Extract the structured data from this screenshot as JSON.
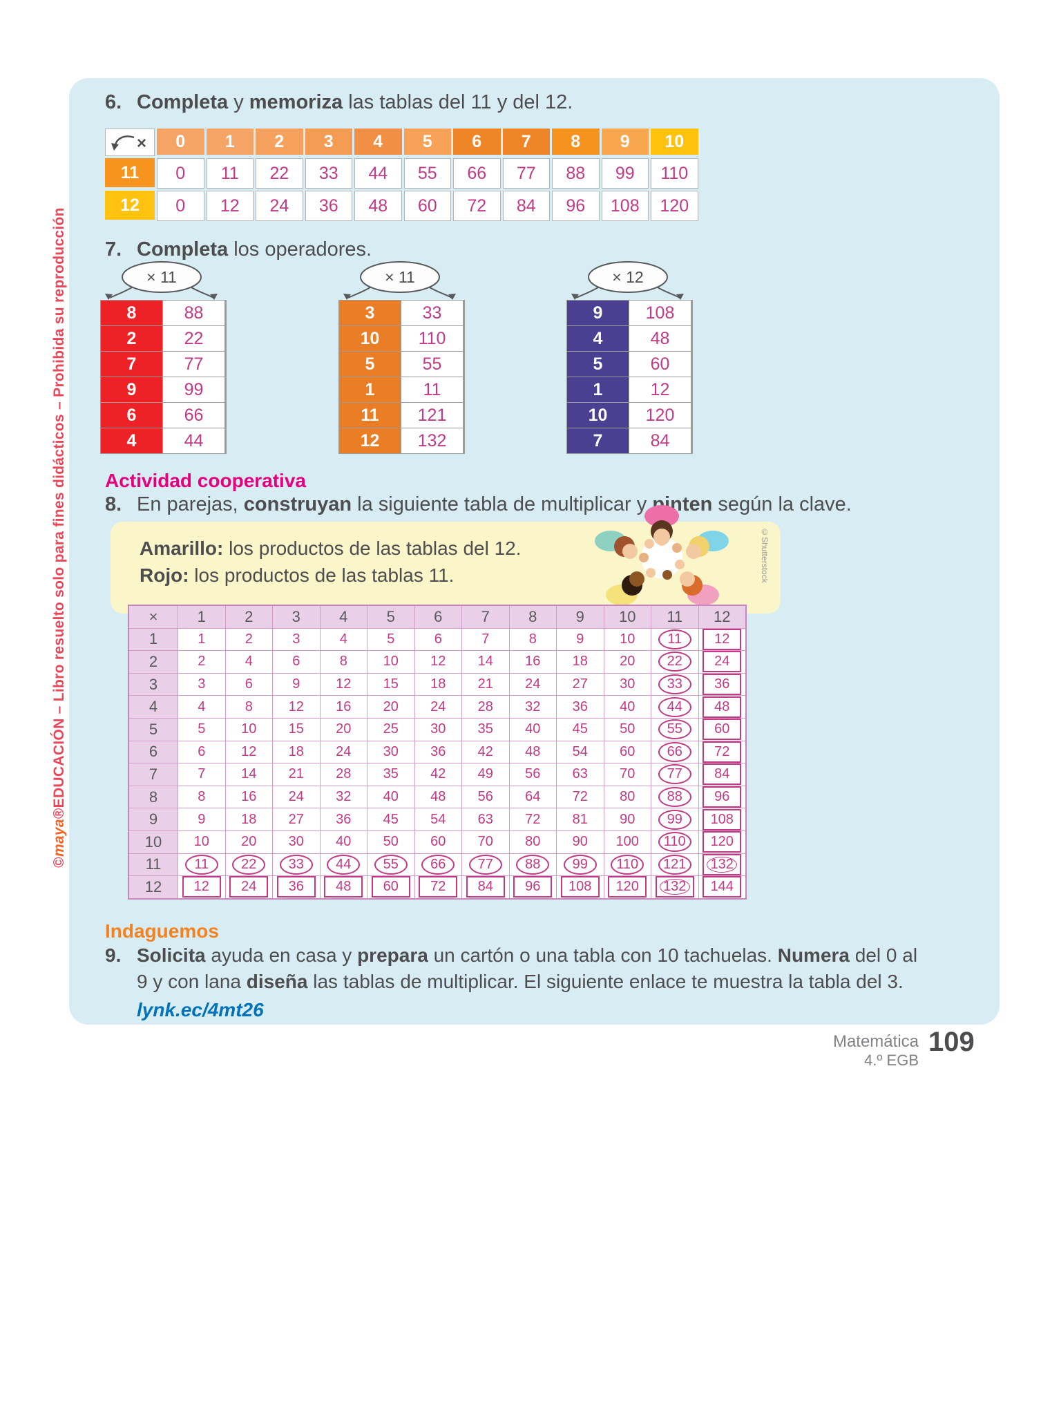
{
  "colors": {
    "panel_blue": "#D8EDF3",
    "value_magenta": "#C13A85",
    "accent_pink": "#E6007E",
    "accent_orange": "#F58220",
    "link_blue": "#0072BC",
    "key_yellow": "#FBF6C9",
    "table_header_purple": "#E9CFE7"
  },
  "page": {
    "sidebar_segments": [
      {
        "t": "©",
        "c": "#E8475A",
        "b": true
      },
      {
        "t": "maya",
        "c": "#F26522",
        "b": true,
        "i": true
      },
      {
        "t": "®EDUCACIÓN",
        "c": "#E8475A",
        "b": true
      },
      {
        "t": " – Libro resuelto solo para fines didácticos – Prohibida su reproducción",
        "c": "#E8475A",
        "b": true
      }
    ],
    "shutterstock_credit": "©Shutterstock",
    "footer": {
      "subject": "Matemática",
      "grade": "4.º EGB",
      "page_number": "109"
    }
  },
  "ex6": {
    "number": "6.",
    "heading_segments": [
      {
        "t": "Completa",
        "b": true
      },
      {
        "t": " y "
      },
      {
        "t": "memoriza",
        "b": true
      },
      {
        "t": " las tablas del 11 y del 12."
      }
    ],
    "times_symbol": "×",
    "header_values": [
      "0",
      "1",
      "2",
      "3",
      "4",
      "5",
      "6",
      "7",
      "8",
      "9",
      "10"
    ],
    "header_colors": [
      "#F7A566",
      "#F7A566",
      "#F6A15E",
      "#F49B54",
      "#F28F46",
      "#F7A159",
      "#EE8527",
      "#EE8527",
      "#F6921E",
      "#F9A74F",
      "#FFC20E"
    ],
    "rows": [
      {
        "label": "11",
        "label_color": "#F7941D",
        "values": [
          "0",
          "11",
          "22",
          "33",
          "44",
          "55",
          "66",
          "77",
          "88",
          "99",
          "110"
        ]
      },
      {
        "label": "12",
        "label_color": "#FFC20E",
        "values": [
          "0",
          "12",
          "24",
          "36",
          "48",
          "60",
          "72",
          "84",
          "96",
          "108",
          "120"
        ]
      }
    ]
  },
  "ex7": {
    "number": "7.",
    "heading_segments": [
      {
        "t": "Completa",
        "b": true
      },
      {
        "t": " los operadores."
      }
    ],
    "groups": [
      {
        "op": "× 11",
        "color": "#EC2227",
        "rows": [
          [
            "8",
            "88"
          ],
          [
            "2",
            "22"
          ],
          [
            "7",
            "77"
          ],
          [
            "9",
            "99"
          ],
          [
            "6",
            "66"
          ],
          [
            "4",
            "44"
          ]
        ]
      },
      {
        "op": "× 11",
        "color": "#E97E26",
        "rows": [
          [
            "3",
            "33"
          ],
          [
            "10",
            "110"
          ],
          [
            "5",
            "55"
          ],
          [
            "1",
            "11"
          ],
          [
            "11",
            "121"
          ],
          [
            "12",
            "132"
          ]
        ]
      },
      {
        "op": "× 12",
        "color": "#4A3F91",
        "rows": [
          [
            "9",
            "108"
          ],
          [
            "4",
            "48"
          ],
          [
            "5",
            "60"
          ],
          [
            "1",
            "12"
          ],
          [
            "10",
            "120"
          ],
          [
            "7",
            "84"
          ]
        ]
      }
    ]
  },
  "ex8": {
    "section_title": "Actividad cooperativa",
    "number": "8.",
    "heading_segments": [
      {
        "t": "En parejas, "
      },
      {
        "t": "construyan",
        "b": true
      },
      {
        "t": " la siguiente tabla de multiplicar y "
      },
      {
        "t": "pinten",
        "b": true
      },
      {
        "t": " según la clave."
      }
    ],
    "key": {
      "line1_segments": [
        {
          "t": "Amarillo:",
          "b": true
        },
        {
          "t": " los productos de las tablas del 12."
        }
      ],
      "line2_segments": [
        {
          "t": "Rojo:",
          "b": true
        },
        {
          "t": " los productos de las tablas 11."
        }
      ]
    },
    "table": {
      "corner": "×",
      "col_headers": [
        "1",
        "2",
        "3",
        "4",
        "5",
        "6",
        "7",
        "8",
        "9",
        "10",
        "11",
        "12"
      ],
      "row_headers": [
        "1",
        "2",
        "3",
        "4",
        "5",
        "6",
        "7",
        "8",
        "9",
        "10",
        "11",
        "12"
      ],
      "rows": [
        [
          1,
          2,
          3,
          4,
          5,
          6,
          7,
          8,
          9,
          10,
          11,
          12
        ],
        [
          2,
          4,
          6,
          8,
          10,
          12,
          14,
          16,
          18,
          20,
          22,
          24
        ],
        [
          3,
          6,
          9,
          12,
          15,
          18,
          21,
          24,
          27,
          30,
          33,
          36
        ],
        [
          4,
          8,
          12,
          16,
          20,
          24,
          28,
          32,
          36,
          40,
          44,
          48
        ],
        [
          5,
          10,
          15,
          20,
          25,
          30,
          35,
          40,
          45,
          50,
          55,
          60
        ],
        [
          6,
          12,
          18,
          24,
          30,
          36,
          42,
          48,
          54,
          60,
          66,
          72
        ],
        [
          7,
          14,
          21,
          28,
          35,
          42,
          49,
          56,
          63,
          70,
          77,
          84
        ],
        [
          8,
          16,
          24,
          32,
          40,
          48,
          56,
          64,
          72,
          80,
          88,
          96
        ],
        [
          9,
          18,
          27,
          36,
          45,
          54,
          63,
          72,
          81,
          90,
          99,
          108
        ],
        [
          10,
          20,
          30,
          40,
          50,
          60,
          70,
          80,
          90,
          100,
          110,
          120
        ],
        [
          11,
          22,
          33,
          44,
          55,
          66,
          77,
          88,
          99,
          110,
          121,
          132
        ],
        [
          12,
          24,
          36,
          48,
          60,
          72,
          84,
          96,
          108,
          120,
          132,
          144
        ]
      ],
      "circle_row": 11,
      "circle_col": 11,
      "box_row": 12,
      "box_col": 12
    }
  },
  "ex9": {
    "section_title": "Indaguemos",
    "number": "9.",
    "line1_segments": [
      {
        "t": "Solicita",
        "b": true
      },
      {
        "t": " ayuda en casa y "
      },
      {
        "t": "prepara",
        "b": true
      },
      {
        "t": " un cartón o una tabla con 10 tachuelas. "
      },
      {
        "t": "Numera",
        "b": true
      },
      {
        "t": " del 0 al"
      }
    ],
    "line2_segments": [
      {
        "t": "9 y con lana "
      },
      {
        "t": "diseña",
        "b": true
      },
      {
        "t": " las tablas de multiplicar. El siguiente enlace te muestra la tabla del 3."
      }
    ],
    "link": "lynk.ec/4mt26"
  }
}
